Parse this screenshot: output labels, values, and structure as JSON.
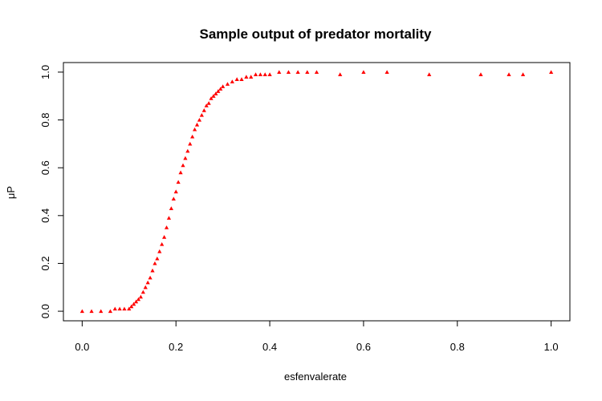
{
  "chart_data": {
    "type": "scatter",
    "title": "Sample output of predator mortality",
    "xlabel": "esfenvalerate",
    "ylabel": "μP",
    "xlim": [
      -0.04,
      1.04
    ],
    "ylim": [
      -0.04,
      1.04
    ],
    "x_ticks": [
      0.0,
      0.2,
      0.4,
      0.6,
      0.8,
      1.0
    ],
    "x_tick_labels": [
      "0.0",
      "0.2",
      "0.4",
      "0.6",
      "0.8",
      "1.0"
    ],
    "y_ticks": [
      0.0,
      0.2,
      0.4,
      0.6,
      0.8,
      1.0
    ],
    "y_tick_labels": [
      "0.0",
      "0.2",
      "0.4",
      "0.6",
      "0.8",
      "1.0"
    ],
    "marker": "triangle",
    "color": "#ff0000",
    "grid": false,
    "legend": "none",
    "x": [
      0.0,
      0.02,
      0.04,
      0.06,
      0.07,
      0.08,
      0.09,
      0.1,
      0.105,
      0.11,
      0.115,
      0.12,
      0.125,
      0.13,
      0.135,
      0.14,
      0.145,
      0.15,
      0.155,
      0.16,
      0.165,
      0.17,
      0.175,
      0.18,
      0.185,
      0.19,
      0.195,
      0.2,
      0.205,
      0.21,
      0.215,
      0.22,
      0.225,
      0.23,
      0.235,
      0.24,
      0.245,
      0.25,
      0.255,
      0.26,
      0.265,
      0.27,
      0.275,
      0.28,
      0.285,
      0.29,
      0.295,
      0.3,
      0.31,
      0.32,
      0.33,
      0.34,
      0.35,
      0.36,
      0.37,
      0.38,
      0.39,
      0.4,
      0.42,
      0.44,
      0.46,
      0.48,
      0.5,
      0.55,
      0.6,
      0.65,
      0.74,
      0.85,
      0.91,
      0.94,
      1.0
    ],
    "y": [
      0.0,
      0.0,
      0.0,
      0.0,
      0.01,
      0.01,
      0.01,
      0.01,
      0.02,
      0.03,
      0.04,
      0.05,
      0.06,
      0.08,
      0.1,
      0.12,
      0.14,
      0.17,
      0.2,
      0.22,
      0.25,
      0.28,
      0.31,
      0.35,
      0.39,
      0.43,
      0.47,
      0.5,
      0.54,
      0.58,
      0.61,
      0.64,
      0.67,
      0.7,
      0.73,
      0.76,
      0.78,
      0.8,
      0.82,
      0.84,
      0.86,
      0.87,
      0.89,
      0.9,
      0.91,
      0.92,
      0.93,
      0.94,
      0.95,
      0.96,
      0.97,
      0.97,
      0.98,
      0.98,
      0.99,
      0.99,
      0.99,
      0.99,
      1.0,
      1.0,
      1.0,
      1.0,
      1.0,
      0.99,
      1.0,
      1.0,
      0.99,
      0.99,
      0.99,
      0.99,
      1.0
    ]
  }
}
